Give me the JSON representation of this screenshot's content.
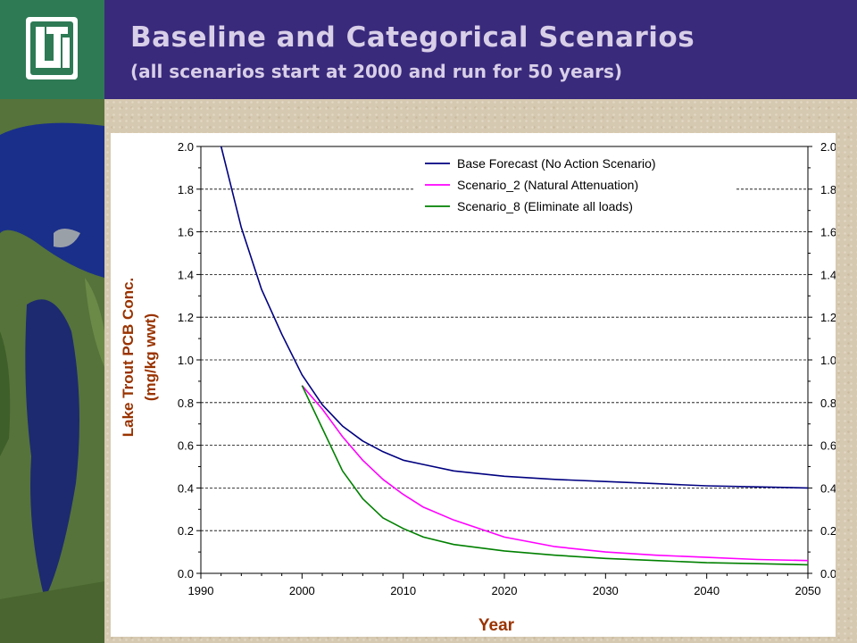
{
  "header": {
    "logo_text": "LTI",
    "title": "Baseline and Categorical Scenarios",
    "subtitle": "(all scenarios start at 2000 and run for 50 years)"
  },
  "colors": {
    "header_bg": "#3a2a7c",
    "logo_bg": "#2e7a55",
    "axis_label": "#993300",
    "base_series": "#000080",
    "scenario2_series": "#ff00ff",
    "scenario8_series": "#008000"
  },
  "chart_data": {
    "type": "line",
    "title": "",
    "xlabel": "Year",
    "ylabel_line1": "Lake Trout PCB Conc.",
    "ylabel_line2": "(mg/kg wwt)",
    "xlim": [
      1990,
      2050
    ],
    "ylim": [
      0,
      2.0
    ],
    "x_ticks": [
      "1990",
      "2000",
      "2010",
      "2020",
      "2030",
      "2040",
      "2050"
    ],
    "y_ticks": [
      "0.0",
      "0.2",
      "0.4",
      "0.6",
      "0.8",
      "1.0",
      "1.2",
      "1.4",
      "1.6",
      "1.8",
      "2.0"
    ],
    "grid": "horizontal dashed",
    "legend_position": "top-right",
    "series": [
      {
        "name": "Base Forecast (No Action Scenario)",
        "color": "#000080",
        "x": [
          1992,
          1994,
          1996,
          1998,
          2000,
          2002,
          2004,
          2006,
          2008,
          2010,
          2012,
          2015,
          2020,
          2025,
          2030,
          2035,
          2040,
          2045,
          2050
        ],
        "y": [
          2.0,
          1.62,
          1.33,
          1.12,
          0.93,
          0.79,
          0.69,
          0.62,
          0.57,
          0.53,
          0.51,
          0.48,
          0.455,
          0.44,
          0.43,
          0.42,
          0.41,
          0.405,
          0.4
        ]
      },
      {
        "name": "Scenario_2 (Natural Attenuation)",
        "color": "#ff00ff",
        "x": [
          2000,
          2002,
          2004,
          2006,
          2008,
          2010,
          2012,
          2015,
          2020,
          2025,
          2030,
          2035,
          2040,
          2045,
          2050
        ],
        "y": [
          0.88,
          0.77,
          0.64,
          0.53,
          0.44,
          0.37,
          0.31,
          0.25,
          0.17,
          0.125,
          0.1,
          0.085,
          0.075,
          0.065,
          0.06
        ]
      },
      {
        "name": "Scenario_8 (Eliminate all loads)",
        "color": "#008000",
        "x": [
          2000,
          2002,
          2004,
          2006,
          2008,
          2010,
          2012,
          2015,
          2020,
          2025,
          2030,
          2035,
          2040,
          2045,
          2050
        ],
        "y": [
          0.88,
          0.68,
          0.48,
          0.35,
          0.26,
          0.21,
          0.17,
          0.135,
          0.105,
          0.085,
          0.07,
          0.06,
          0.05,
          0.045,
          0.04
        ]
      }
    ]
  }
}
